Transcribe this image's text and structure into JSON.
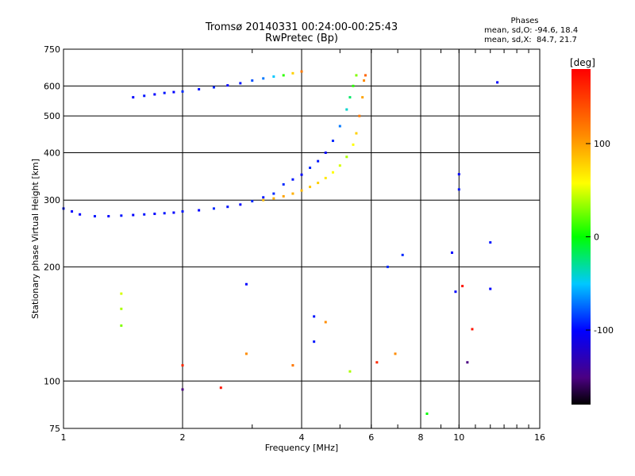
{
  "header": {
    "title_line1": "Tromsø 20140331 00:24:00-00:25:43",
    "title_line2": "RwPretec (Bp)"
  },
  "stats": {
    "heading": "Phases",
    "line_o": "mean, sd,O: -94.6, 18.4",
    "line_x": "mean, sd,X:  84.7, 21.7"
  },
  "colorbar": {
    "label": "[deg]",
    "ticks": [
      "100",
      "0",
      "-100"
    ],
    "tick_values": [
      100,
      0,
      -100
    ],
    "range": [
      -180,
      180
    ]
  },
  "chart_data": {
    "type": "scatter",
    "xlabel": "Frequency [MHz]",
    "ylabel": "Stationary phase Virtual Height [km]",
    "x_scale": "log2",
    "y_scale": "log",
    "xlim": [
      1,
      16
    ],
    "ylim": [
      75,
      750
    ],
    "x_ticks": [
      1,
      2,
      4,
      6,
      8,
      10,
      16
    ],
    "x_tick_labels": [
      "1",
      "2",
      "4",
      "6",
      "8",
      "10",
      "16"
    ],
    "y_ticks": [
      75,
      100,
      200,
      300,
      400,
      500,
      600,
      750
    ],
    "y_tick_labels": [
      "75",
      "100",
      "200",
      "300",
      "400",
      "500",
      "600",
      "750"
    ],
    "grid": true,
    "color_scale": "phase in degrees, -180 (black/purple) to 180 (red)",
    "traces": [
      {
        "name": "low E/F trace",
        "points": [
          [
            1.0,
            285,
            -95
          ],
          [
            1.05,
            280,
            -100
          ],
          [
            1.1,
            275,
            -100
          ],
          [
            1.2,
            272,
            -95
          ],
          [
            1.3,
            272,
            -100
          ],
          [
            1.4,
            273,
            -95
          ],
          [
            1.5,
            274,
            -100
          ],
          [
            1.6,
            275,
            -95
          ],
          [
            1.7,
            276,
            -100
          ],
          [
            1.8,
            277,
            -95
          ],
          [
            1.9,
            278,
            -100
          ],
          [
            2.0,
            280,
            -95
          ],
          [
            2.2,
            282,
            -100
          ],
          [
            2.4,
            285,
            -90
          ],
          [
            2.6,
            288,
            -95
          ],
          [
            2.8,
            292,
            -100
          ],
          [
            3.0,
            298,
            -90
          ],
          [
            3.2,
            305,
            -95
          ],
          [
            3.4,
            312,
            -90
          ]
        ]
      },
      {
        "name": "upper O trace",
        "points": [
          [
            1.5,
            560,
            -100
          ],
          [
            1.6,
            565,
            -95
          ],
          [
            1.7,
            570,
            -100
          ],
          [
            1.8,
            575,
            -95
          ],
          [
            1.9,
            578,
            -100
          ],
          [
            2.0,
            580,
            -90
          ],
          [
            2.2,
            588,
            -95
          ],
          [
            2.4,
            595,
            -90
          ],
          [
            2.6,
            602,
            -100
          ],
          [
            2.8,
            610,
            -95
          ],
          [
            3.0,
            620,
            -80
          ],
          [
            3.2,
            628,
            -70
          ],
          [
            3.4,
            635,
            -50
          ],
          [
            3.6,
            640,
            10
          ],
          [
            3.8,
            648,
            80
          ],
          [
            4.0,
            655,
            120
          ]
        ]
      },
      {
        "name": "X trace",
        "points": [
          [
            3.2,
            300,
            90
          ],
          [
            3.4,
            303,
            95
          ],
          [
            3.6,
            307,
            100
          ],
          [
            3.8,
            312,
            95
          ],
          [
            4.0,
            318,
            90
          ],
          [
            4.2,
            325,
            85
          ],
          [
            4.4,
            333,
            80
          ],
          [
            4.6,
            343,
            70
          ],
          [
            4.8,
            355,
            60
          ],
          [
            5.0,
            370,
            50
          ],
          [
            5.2,
            390,
            40
          ],
          [
            5.4,
            420,
            60
          ],
          [
            5.5,
            450,
            80
          ],
          [
            5.6,
            500,
            120
          ],
          [
            5.7,
            560,
            100
          ],
          [
            5.75,
            620,
            110
          ],
          [
            5.8,
            640,
            130
          ]
        ]
      },
      {
        "name": "O rising branch",
        "points": [
          [
            3.6,
            330,
            -90
          ],
          [
            3.8,
            340,
            -95
          ],
          [
            4.0,
            350,
            -100
          ],
          [
            4.2,
            365,
            -90
          ],
          [
            4.4,
            380,
            -95
          ],
          [
            4.6,
            400,
            -100
          ],
          [
            4.8,
            430,
            -90
          ],
          [
            5.0,
            470,
            -70
          ],
          [
            5.2,
            520,
            -40
          ],
          [
            5.3,
            560,
            -20
          ],
          [
            5.4,
            600,
            10
          ],
          [
            5.5,
            640,
            30
          ]
        ]
      },
      {
        "name": "scattered echoes",
        "points": [
          [
            1.4,
            170,
            50
          ],
          [
            1.4,
            155,
            40
          ],
          [
            1.4,
            140,
            30
          ],
          [
            2.0,
            95,
            -150
          ],
          [
            2.0,
            110,
            160
          ],
          [
            2.5,
            96,
            170
          ],
          [
            2.9,
            180,
            -100
          ],
          [
            2.9,
            118,
            110
          ],
          [
            3.8,
            110,
            120
          ],
          [
            4.3,
            148,
            -95
          ],
          [
            4.3,
            127,
            -95
          ],
          [
            4.6,
            143,
            110
          ],
          [
            5.3,
            106,
            40
          ],
          [
            6.2,
            112,
            160
          ],
          [
            6.6,
            200,
            -90
          ],
          [
            6.9,
            118,
            110
          ],
          [
            7.2,
            215,
            -90
          ],
          [
            8.3,
            82,
            0
          ],
          [
            9.6,
            218,
            -100
          ],
          [
            9.8,
            172,
            -100
          ],
          [
            10.2,
            178,
            170
          ],
          [
            10.5,
            112,
            -150
          ],
          [
            10.8,
            137,
            170
          ],
          [
            12.0,
            175,
            -100
          ],
          [
            12.0,
            232,
            -95
          ],
          [
            12.5,
            613,
            -100
          ],
          [
            10.0,
            351,
            -100
          ],
          [
            10.0,
            320,
            -95
          ]
        ]
      }
    ]
  }
}
